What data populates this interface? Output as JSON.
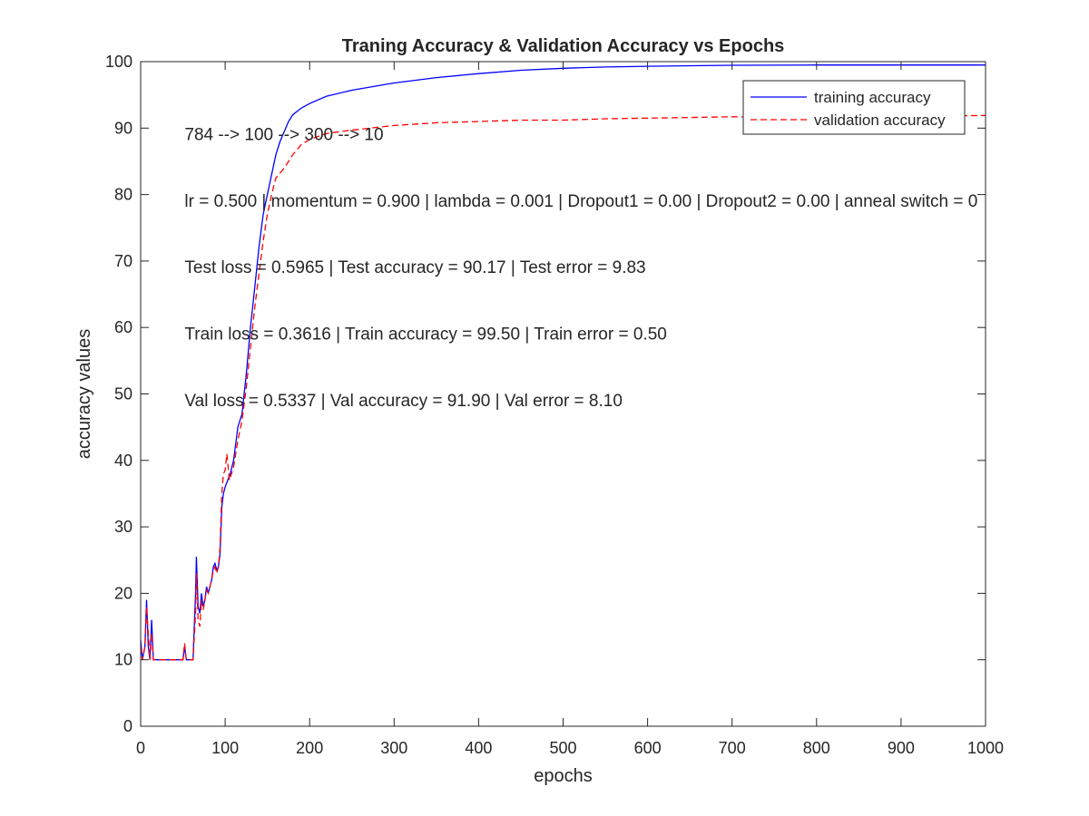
{
  "chart_data": {
    "type": "line",
    "title": "Traning Accuracy & Validation Accuracy vs Epochs",
    "xlabel": "epochs",
    "ylabel": "accuracy values",
    "xlim": [
      0,
      1000
    ],
    "ylim": [
      0,
      100
    ],
    "xticks": [
      0,
      100,
      200,
      300,
      400,
      500,
      600,
      700,
      800,
      900,
      1000
    ],
    "yticks": [
      0,
      10,
      20,
      30,
      40,
      50,
      60,
      70,
      80,
      90,
      100
    ],
    "grid": false,
    "legend_position": "top-right",
    "series": [
      {
        "name": "training accuracy",
        "color": "#0000ff",
        "style": "solid",
        "points": [
          [
            0,
            13
          ],
          [
            2,
            10
          ],
          [
            5,
            12
          ],
          [
            7,
            19
          ],
          [
            9,
            12
          ],
          [
            11,
            10
          ],
          [
            13,
            16
          ],
          [
            15,
            10
          ],
          [
            20,
            10
          ],
          [
            30,
            10
          ],
          [
            40,
            10
          ],
          [
            50,
            10
          ],
          [
            52,
            12
          ],
          [
            54,
            10
          ],
          [
            58,
            10
          ],
          [
            62,
            10
          ],
          [
            65,
            20
          ],
          [
            66,
            25.5
          ],
          [
            68,
            18
          ],
          [
            70,
            17
          ],
          [
            72,
            20
          ],
          [
            74,
            18
          ],
          [
            76,
            19
          ],
          [
            78,
            21
          ],
          [
            80,
            20
          ],
          [
            82,
            21
          ],
          [
            84,
            22
          ],
          [
            86,
            24
          ],
          [
            88,
            24.5
          ],
          [
            90,
            23.5
          ],
          [
            92,
            24
          ],
          [
            94,
            26
          ],
          [
            96,
            33
          ],
          [
            98,
            35
          ],
          [
            100,
            36
          ],
          [
            103,
            37
          ],
          [
            106,
            38
          ],
          [
            110,
            40
          ],
          [
            115,
            45
          ],
          [
            120,
            47
          ],
          [
            125,
            53
          ],
          [
            130,
            60
          ],
          [
            135,
            66
          ],
          [
            140,
            72
          ],
          [
            145,
            77
          ],
          [
            150,
            80
          ],
          [
            155,
            83
          ],
          [
            160,
            86
          ],
          [
            165,
            88
          ],
          [
            170,
            89.5
          ],
          [
            175,
            91
          ],
          [
            180,
            92
          ],
          [
            190,
            93
          ],
          [
            200,
            93.7
          ],
          [
            220,
            94.8
          ],
          [
            250,
            95.7
          ],
          [
            300,
            96.8
          ],
          [
            350,
            97.6
          ],
          [
            400,
            98.2
          ],
          [
            450,
            98.7
          ],
          [
            500,
            99
          ],
          [
            550,
            99.2
          ],
          [
            600,
            99.3
          ],
          [
            700,
            99.45
          ],
          [
            800,
            99.5
          ],
          [
            1000,
            99.5
          ]
        ]
      },
      {
        "name": "validation accuracy",
        "color": "#ff0000",
        "style": "dashed",
        "points": [
          [
            0,
            12
          ],
          [
            2,
            10
          ],
          [
            5,
            12
          ],
          [
            7,
            18
          ],
          [
            9,
            14
          ],
          [
            11,
            10
          ],
          [
            13,
            14
          ],
          [
            15,
            10
          ],
          [
            20,
            10
          ],
          [
            30,
            10
          ],
          [
            40,
            10
          ],
          [
            50,
            10
          ],
          [
            52,
            12.5
          ],
          [
            54,
            10
          ],
          [
            58,
            10
          ],
          [
            62,
            10
          ],
          [
            65,
            17
          ],
          [
            66,
            23
          ],
          [
            68,
            16
          ],
          [
            70,
            15
          ],
          [
            72,
            19
          ],
          [
            74,
            17.5
          ],
          [
            76,
            19
          ],
          [
            78,
            20.5
          ],
          [
            80,
            20
          ],
          [
            82,
            21
          ],
          [
            84,
            22
          ],
          [
            86,
            23.5
          ],
          [
            88,
            24
          ],
          [
            90,
            23
          ],
          [
            92,
            24
          ],
          [
            94,
            27
          ],
          [
            96,
            35
          ],
          [
            98,
            38
          ],
          [
            100,
            38.5
          ],
          [
            102,
            41
          ],
          [
            105,
            37
          ],
          [
            110,
            39
          ],
          [
            115,
            43
          ],
          [
            120,
            46
          ],
          [
            125,
            51
          ],
          [
            130,
            57
          ],
          [
            135,
            63
          ],
          [
            140,
            68
          ],
          [
            145,
            73
          ],
          [
            150,
            77
          ],
          [
            155,
            80
          ],
          [
            160,
            82.5
          ],
          [
            170,
            84
          ],
          [
            180,
            86
          ],
          [
            190,
            87.5
          ],
          [
            200,
            88.3
          ],
          [
            220,
            89.2
          ],
          [
            250,
            89.7
          ],
          [
            300,
            90.4
          ],
          [
            350,
            90.8
          ],
          [
            400,
            91
          ],
          [
            450,
            91.2
          ],
          [
            500,
            91.2
          ],
          [
            550,
            91.4
          ],
          [
            600,
            91.5
          ],
          [
            650,
            91.6
          ],
          [
            700,
            91.7
          ],
          [
            800,
            91.6
          ],
          [
            900,
            91.8
          ],
          [
            1000,
            91.9
          ]
        ]
      }
    ],
    "annotations": [
      {
        "x": 52,
        "y": 89,
        "text": "784 --> 100 --> 300 --> 10"
      },
      {
        "x": 52,
        "y": 79,
        "text": "lr = 0.500 | momentum = 0.900 | lambda = 0.001 | Dropout1 = 0.00 | Dropout2 = 0.00 | anneal switch = 0"
      },
      {
        "x": 52,
        "y": 69,
        "text": "Test loss = 0.5965 | Test accuracy = 90.17 | Test error = 9.83"
      },
      {
        "x": 52,
        "y": 59,
        "text": "Train loss = 0.3616 | Train accuracy = 99.50 | Train error = 0.50"
      },
      {
        "x": 52,
        "y": 49,
        "text": "Val loss = 0.5337 | Val accuracy = 91.90 | Val error = 8.10"
      }
    ]
  }
}
